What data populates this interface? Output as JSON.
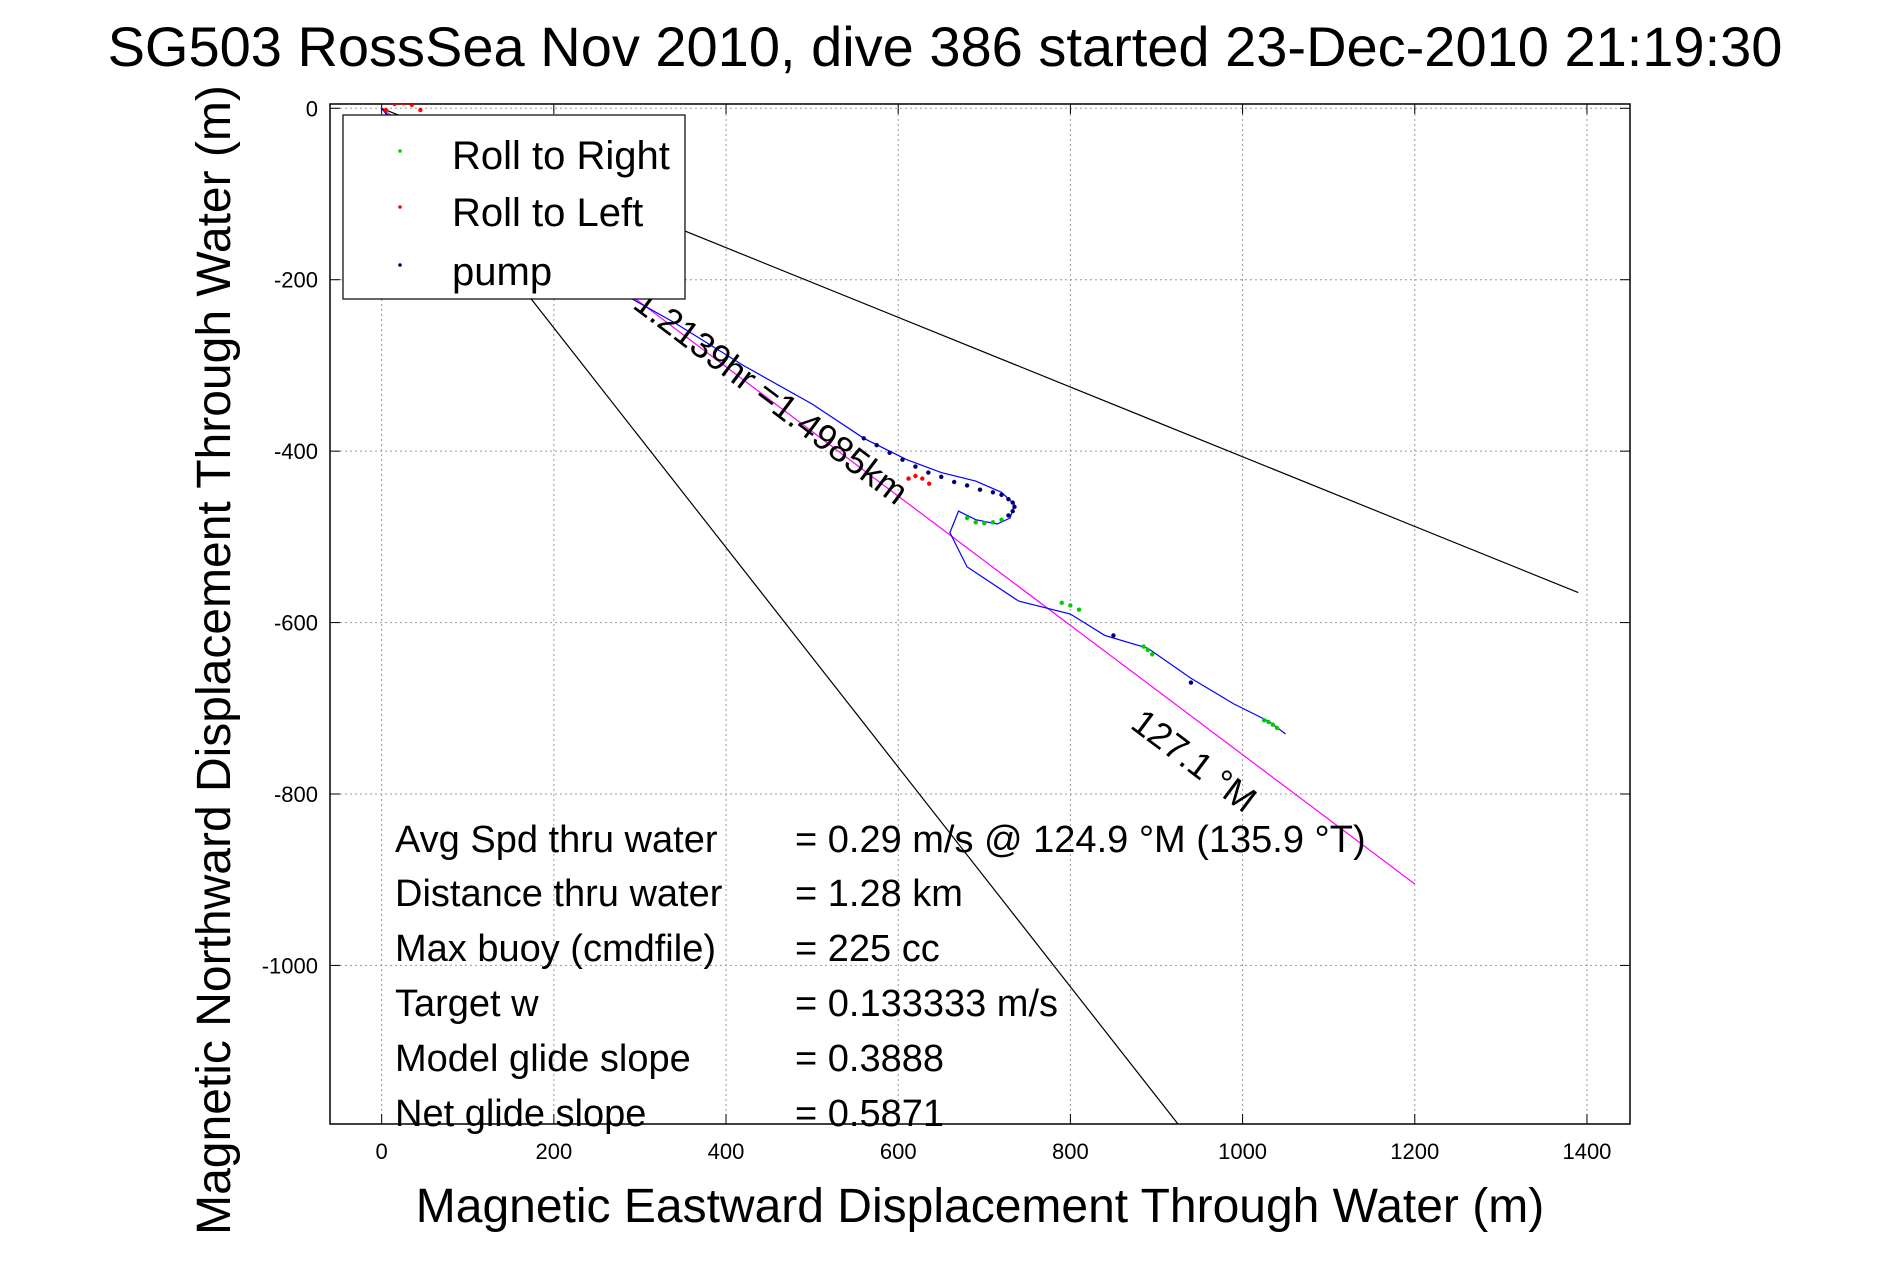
{
  "chart_data": {
    "type": "line",
    "title": "SG503 RossSea Nov 2010, dive 386 started 23-Dec-2010 21:19:30",
    "xlabel": "Magnetic Eastward Displacement Through Water (m)",
    "ylabel": "Magnetic Northward Displacement Through Water (m)",
    "xlim": [
      -60,
      1450
    ],
    "ylim": [
      -1185,
      5
    ],
    "xticks": [
      0,
      200,
      400,
      600,
      800,
      1000,
      1200,
      1400
    ],
    "yticks": [
      0,
      -200,
      -400,
      -600,
      -800,
      -1000
    ],
    "xtick_labels": [
      "0",
      "200",
      "400",
      "600",
      "800",
      "1000",
      "1200",
      "1400"
    ],
    "ytick_labels": [
      "0",
      "-200",
      "-400",
      "-600",
      "-800",
      "-1000"
    ],
    "grid": true,
    "legend": {
      "placement": "top-left",
      "entries": [
        {
          "label": "Roll to Right",
          "color": "#00cc00"
        },
        {
          "label": "Roll to Left",
          "color": "#ff0000"
        },
        {
          "label": "pump",
          "color": "#000066"
        }
      ]
    },
    "track": {
      "color": "#0000ff",
      "x": [
        0,
        40,
        100,
        180,
        260,
        340,
        420,
        500,
        560,
        610,
        650,
        690,
        720,
        735,
        730,
        715,
        690,
        670,
        660,
        680,
        740,
        800,
        840,
        890,
        940,
        990,
        1030,
        1050
      ],
      "y": [
        0,
        -45,
        -100,
        -155,
        -205,
        -250,
        -300,
        -345,
        -385,
        -410,
        -425,
        -435,
        -448,
        -462,
        -478,
        -485,
        -480,
        -470,
        -495,
        -535,
        -575,
        -590,
        -615,
        -630,
        -665,
        -695,
        -715,
        -730
      ]
    },
    "roll_right": {
      "color": "#00cc00",
      "x": [
        680,
        690,
        700,
        710,
        720,
        790,
        800,
        810,
        885,
        890,
        895,
        1025,
        1030,
        1035,
        1040
      ],
      "y": [
        -478,
        -483,
        -484,
        -483,
        -480,
        -577,
        -580,
        -585,
        -628,
        -632,
        -637,
        -714,
        -716,
        -719,
        -723
      ]
    },
    "roll_left": {
      "color": "#ff0000",
      "x": [
        5,
        15,
        25,
        35,
        45,
        612,
        620,
        628,
        636
      ],
      "y": [
        -2,
        5,
        6,
        4,
        -2,
        -432,
        -429,
        -432,
        -438
      ]
    },
    "pump": {
      "color": "#000066",
      "x": [
        560,
        575,
        590,
        605,
        620,
        635,
        650,
        665,
        680,
        695,
        710,
        720,
        728,
        733,
        735,
        733,
        728,
        850,
        940
      ],
      "y": [
        -385,
        -393,
        -402,
        -410,
        -418,
        -425,
        -430,
        -436,
        -440,
        -445,
        -448,
        -451,
        -456,
        -460,
        -465,
        -470,
        -475,
        -615,
        -670
      ]
    },
    "heading_line": {
      "color": "#ff00ff",
      "x": [
        0,
        1200
      ],
      "y": [
        0,
        -905
      ],
      "label": "127.1 °M"
    },
    "bound_lines": {
      "color": "#000000",
      "lines": [
        {
          "x": [
            0,
            1390
          ],
          "y": [
            0,
            -565
          ]
        },
        {
          "x": [
            0,
            925
          ],
          "y": [
            0,
            -1185
          ]
        }
      ]
    },
    "curve_label": "1.2139hr =1.4985km",
    "stats": [
      {
        "label": "Avg Spd thru water",
        "value": "=  0.29 m/s @ 124.9 °M (135.9 °T)"
      },
      {
        "label": "Distance thru water",
        "value": "=  1.28 km"
      },
      {
        "label": "Max buoy (cmdfile)",
        "value": "= 225 cc"
      },
      {
        "label": "Target w",
        "value": "= 0.133333 m/s"
      },
      {
        "label": "Model glide slope",
        "value": "= 0.3888"
      },
      {
        "label": "Net glide slope",
        "value": "= 0.5871"
      }
    ]
  }
}
